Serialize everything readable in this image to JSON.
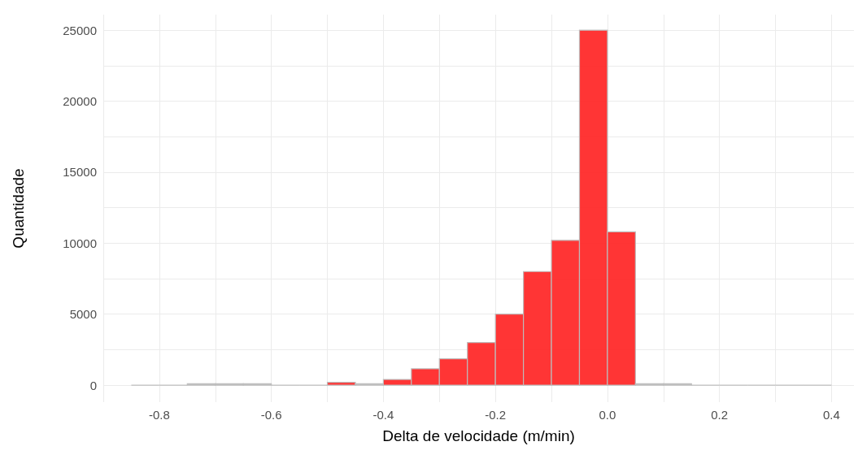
{
  "chart_data": {
    "type": "histogram",
    "xlabel": "Delta de velocidade (m/min)",
    "ylabel": "Quantidade",
    "bins": [
      -0.85,
      -0.8,
      -0.75,
      -0.7,
      -0.65,
      -0.6,
      -0.55,
      -0.5,
      -0.45,
      -0.4,
      -0.35,
      -0.3,
      -0.25,
      -0.2,
      -0.15,
      -0.1,
      -0.05,
      0,
      0.05,
      0.1,
      0.15,
      0.2,
      0.25,
      0.3,
      0.35,
      0.4
    ],
    "values": [
      0,
      0,
      100,
      100,
      100,
      0,
      0,
      200,
      100,
      400,
      1150,
      1850,
      3000,
      5000,
      8000,
      10200,
      25000,
      10800,
      100,
      100,
      0,
      0,
      0,
      0,
      0
    ],
    "colors": [
      "#bdbdbd",
      "#bdbdbd",
      "#bdbdbd",
      "#bdbdbd",
      "#bdbdbd",
      "#bdbdbd",
      "#bdbdbd",
      "#ff2a2a",
      "#bdbdbd",
      "#ff2a2a",
      "#ff2a2a",
      "#ff2a2a",
      "#ff2a2a",
      "#ff2a2a",
      "#ff2a2a",
      "#ff2a2a",
      "#ff2a2a",
      "#ff2a2a",
      "#bdbdbd",
      "#bdbdbd",
      "#bdbdbd",
      "#bdbdbd",
      "#bdbdbd",
      "#bdbdbd",
      "#bdbdbd"
    ],
    "xlim": [
      -0.9,
      0.44
    ],
    "xticks": [
      {
        "value": -0.9,
        "label": null
      },
      -0.8,
      {
        "value": -0.7,
        "label": null
      },
      -0.6,
      {
        "value": -0.5,
        "label": null
      },
      -0.4,
      {
        "value": -0.3,
        "label": null
      },
      -0.2,
      {
        "value": -0.1,
        "label": null
      },
      {
        "value": 0,
        "label": "0.0"
      },
      {
        "value": 0.1,
        "label": null
      },
      0.2,
      {
        "value": 0.3,
        "label": null
      },
      0.4
    ],
    "ylim": [
      -1200,
      26100
    ],
    "yticks": [
      0,
      {
        "value": 2500,
        "label": null
      },
      5000,
      {
        "value": 7500,
        "label": null
      },
      10000,
      {
        "value": 12500,
        "label": null
      },
      15000,
      {
        "value": 17500,
        "label": null
      },
      20000,
      {
        "value": 22500,
        "label": null
      },
      25000
    ],
    "grid": true
  }
}
